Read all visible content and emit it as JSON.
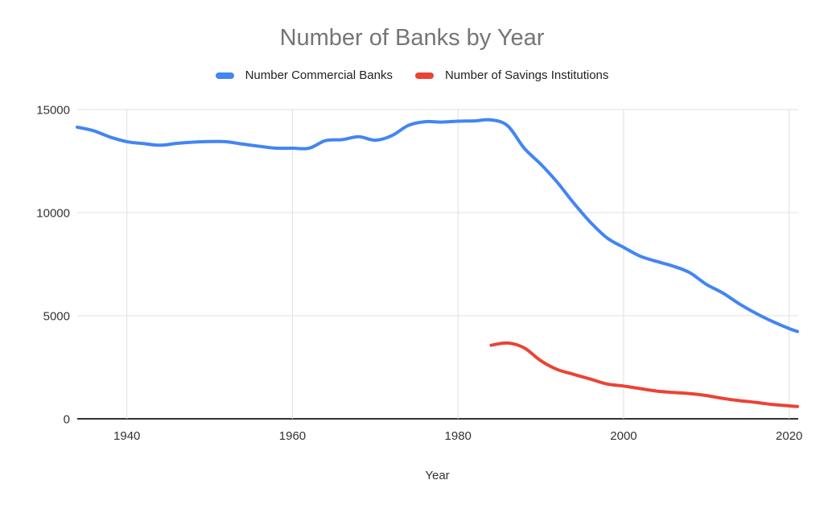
{
  "chart_data": {
    "type": "line",
    "title": "Number of Banks by Year",
    "xlabel": "Year",
    "ylabel": "",
    "xlim": [
      1934,
      2021
    ],
    "ylim": [
      0,
      15000
    ],
    "x_ticks": [
      1940,
      1960,
      1980,
      2000,
      2020
    ],
    "y_ticks": [
      0,
      5000,
      10000,
      15000
    ],
    "grid": true,
    "legend_position": "top",
    "colors": {
      "commercial_banks": "#4285F4",
      "savings_institutions": "#EA4335",
      "title_text": "#757575",
      "axis_text": "#333333",
      "gridline": "#E0E0E0",
      "baseline": "#333333",
      "background": "#FFFFFF"
    },
    "series": [
      {
        "name": "Number Commercial Banks",
        "color": "#4285F4",
        "x": [
          1934,
          1936,
          1938,
          1940,
          1942,
          1944,
          1946,
          1948,
          1950,
          1952,
          1954,
          1956,
          1958,
          1960,
          1962,
          1964,
          1966,
          1968,
          1970,
          1972,
          1974,
          1976,
          1978,
          1980,
          1982,
          1984,
          1986,
          1988,
          1990,
          1992,
          1994,
          1996,
          1998,
          2000,
          2002,
          2004,
          2006,
          2008,
          2010,
          2012,
          2014,
          2016,
          2018,
          2020,
          2021
        ],
        "values": [
          14146,
          13969,
          13661,
          13442,
          13347,
          13268,
          13359,
          13419,
          13446,
          13439,
          13323,
          13218,
          13124,
          13126,
          13124,
          13493,
          13538,
          13679,
          13511,
          13733,
          14230,
          14411,
          14391,
          14434,
          14451,
          14496,
          14210,
          13123,
          12347,
          11463,
          10452,
          9528,
          8774,
          8315,
          7888,
          7631,
          7402,
          7087,
          6519,
          6096,
          5571,
          5112,
          4717,
          4375,
          4236
        ]
      },
      {
        "name": "Number of Savings Institutions",
        "color": "#EA4335",
        "x": [
          1984,
          1986,
          1988,
          1990,
          1992,
          1994,
          1996,
          1998,
          2000,
          2002,
          2004,
          2006,
          2008,
          2010,
          2012,
          2014,
          2016,
          2018,
          2020,
          2021
        ],
        "values": [
          3566,
          3677,
          3438,
          2815,
          2390,
          2152,
          1924,
          1687,
          1589,
          1466,
          1345,
          1279,
          1219,
          1128,
          987,
          880,
          796,
          691,
          627,
          593
        ]
      }
    ]
  }
}
